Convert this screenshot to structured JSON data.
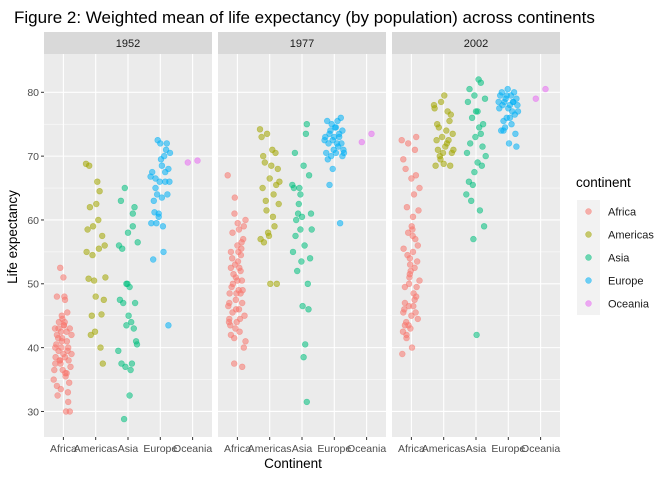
{
  "chart_data": {
    "type": "scatter",
    "title": "Figure 2: Weighted mean of life expectancy (by population) across continents",
    "xlabel": "Continent",
    "ylabel": "Life expectancy",
    "ylim": [
      26,
      86
    ],
    "y_ticks": [
      30,
      40,
      50,
      60,
      70,
      80
    ],
    "categories": [
      "Africa",
      "Americas",
      "Asia",
      "Europe",
      "Oceania"
    ],
    "facet_variable": "year",
    "legend": {
      "title": "continent",
      "position": "right"
    },
    "grid": true,
    "point_alpha": 0.55,
    "colors": {
      "Africa": "#F8766D",
      "Americas": "#A3A500",
      "Asia": "#00BF7D",
      "Europe": "#00B0F6",
      "Oceania": "#E76BF3"
    },
    "panel_background": "#EBEBEB",
    "strip_background": "#D9D9D9",
    "facets": [
      {
        "label": "1952",
        "series": [
          {
            "name": "Africa",
            "x": [
              0.7,
              0.75,
              0.75,
              0.8,
              0.8,
              0.8,
              0.85,
              0.85,
              0.9,
              0.9,
              0.92,
              0.95,
              0.95,
              0.98,
              1.0,
              1.0,
              1.02,
              1.05,
              1.05,
              1.08,
              1.1,
              1.1,
              1.12,
              1.15,
              1.15,
              1.18,
              1.2,
              1.2,
              1.22,
              1.25,
              1.25,
              0.72,
              0.78,
              0.82,
              0.88,
              0.93,
              0.97,
              1.03,
              1.07,
              1.13,
              0.76,
              0.86,
              0.96,
              1.06,
              1.16,
              0.74,
              0.84,
              0.94,
              1.04,
              1.14,
              0.91,
              1.01,
              1.11
            ],
            "y": [
              35.0,
              37.5,
              40.0,
              34.0,
              42.0,
              48.0,
              43.0,
              39.5,
              52.5,
              38.0,
              33.5,
              45.0,
              41.0,
              36.5,
              39.0,
              51.0,
              43.5,
              38.5,
              47.5,
              30.0,
              42.5,
              36.0,
              45.5,
              31.5,
              40.0,
              34.5,
              30.0,
              43.0,
              37.0,
              42.0,
              39.0,
              36.5,
              40.5,
              32.5,
              38.0,
              42.5,
              44.5,
              48.0,
              35.5,
              39.5,
              38.5,
              44.0,
              41.5,
              36.0,
              38.0,
              43.0,
              41.5,
              40.0,
              44.0,
              33.0,
              37.5,
              43.5,
              41.0
            ]
          },
          {
            "name": "Americas",
            "x": [
              1.7,
              1.72,
              1.75,
              1.78,
              1.8,
              1.82,
              1.85,
              1.88,
              1.9,
              1.92,
              1.95,
              1.98,
              2.0,
              2.02,
              2.05,
              2.08,
              2.1,
              2.12,
              2.15,
              2.18,
              2.2,
              2.22,
              2.25,
              2.28,
              2.3
            ],
            "y": [
              68.8,
              55.0,
              58.5,
              50.8,
              68.5,
              62.0,
              42.0,
              45.0,
              54.5,
              59.0,
              50.5,
              42.5,
              48.0,
              62.5,
              66.0,
              60.0,
              55.5,
              64.5,
              40.0,
              45.2,
              57.5,
              37.5,
              47.5,
              56.0,
              51.0
            ]
          },
          {
            "name": "Asia",
            "x": [
              2.7,
              2.72,
              2.75,
              2.78,
              2.8,
              2.82,
              2.85,
              2.88,
              2.9,
              2.92,
              2.95,
              2.98,
              3.0,
              3.02,
              3.05,
              3.08,
              3.1,
              3.12,
              3.15,
              3.18,
              3.2,
              3.22,
              3.25,
              3.28,
              3.3,
              3.15,
              2.95,
              3.05
            ],
            "y": [
              39.5,
              56.0,
              47.5,
              63.0,
              37.5,
              55.5,
              47.0,
              28.8,
              65.0,
              37.0,
              43.5,
              50.0,
              58.0,
              45.0,
              49.5,
              36.5,
              44.0,
              37.5,
              59.0,
              43.0,
              62.0,
              47.0,
              41.0,
              40.5,
              56.5,
              61.0,
              50.0,
              32.5
            ]
          },
          {
            "name": "Europe",
            "x": [
              3.7,
              3.72,
              3.75,
              3.78,
              3.8,
              3.82,
              3.85,
              3.88,
              3.9,
              3.92,
              3.95,
              3.98,
              4.0,
              4.02,
              4.05,
              4.08,
              4.1,
              4.12,
              4.15,
              4.18,
              4.2,
              4.22,
              4.25,
              4.28,
              4.3,
              3.85,
              3.95,
              4.05,
              4.15,
              4.25
            ],
            "y": [
              66.8,
              59.5,
              67.5,
              53.8,
              63.0,
              61.2,
              66.5,
              59.5,
              64.0,
              72.5,
              61.0,
              66.0,
              72.0,
              69.5,
              68.5,
              59.0,
              55.0,
              70.0,
              67.5,
              71.0,
              72.0,
              64.0,
              43.5,
              66.0,
              70.5,
              65.0,
              60.5,
              63.5,
              66.0,
              68.0
            ]
          },
          {
            "name": "Oceania",
            "x": [
              4.85,
              5.15
            ],
            "y": [
              69.0,
              69.3
            ]
          }
        ]
      },
      {
        "label": "1977",
        "series": [
          {
            "name": "Africa",
            "x": [
              0.7,
              0.75,
              0.75,
              0.8,
              0.8,
              0.8,
              0.85,
              0.85,
              0.9,
              0.9,
              0.92,
              0.95,
              0.95,
              0.98,
              1.0,
              1.0,
              1.02,
              1.05,
              1.05,
              1.08,
              1.1,
              1.1,
              1.12,
              1.15,
              1.15,
              1.18,
              1.2,
              1.2,
              1.22,
              1.25,
              1.25,
              0.72,
              0.78,
              0.82,
              0.88,
              0.93,
              0.97,
              1.03,
              1.07,
              1.13,
              0.76,
              0.86,
              0.96,
              1.06,
              1.16,
              0.74,
              0.84,
              0.94,
              1.04,
              1.14,
              0.91,
              1.01,
              1.11
            ],
            "y": [
              67.0,
              44.5,
              47.0,
              52.5,
              55.0,
              42.0,
              58.0,
              45.5,
              41.5,
              37.5,
              63.5,
              51.0,
              47.5,
              44.0,
              50.5,
              56.0,
              53.5,
              58.5,
              46.0,
              44.5,
              52.0,
              48.5,
              55.5,
              37.0,
              47.0,
              57.0,
              40.0,
              59.0,
              45.0,
              60.0,
              41.0,
              46.5,
              43.5,
              49.5,
              51.5,
              53.0,
              48.5,
              55.0,
              42.5,
              56.5,
              48.5,
              50.0,
              46.0,
              52.5,
              49.0,
              44.0,
              54.0,
              43.0,
              49.0,
              50.5,
              61.0,
              59.5,
              54.5
            ]
          },
          {
            "name": "Americas",
            "x": [
              1.7,
              1.72,
              1.75,
              1.78,
              1.8,
              1.82,
              1.85,
              1.88,
              1.9,
              1.92,
              1.95,
              1.98,
              2.0,
              2.02,
              2.05,
              2.08,
              2.1,
              2.12,
              2.15,
              2.18,
              2.2,
              2.22,
              2.25,
              2.28,
              2.3
            ],
            "y": [
              74.2,
              57.0,
              73.0,
              65.0,
              70.0,
              56.5,
              69.0,
              63.0,
              61.5,
              73.5,
              58.0,
              57.5,
              66.5,
              50.0,
              68.5,
              71.0,
              60.5,
              64.0,
              59.0,
              70.5,
              65.5,
              50.0,
              68.0,
              62.5,
              66.0
            ]
          },
          {
            "name": "Asia",
            "x": [
              2.7,
              2.72,
              2.75,
              2.78,
              2.8,
              2.82,
              2.85,
              2.88,
              2.9,
              2.92,
              2.95,
              2.98,
              3.0,
              3.02,
              3.05,
              3.08,
              3.1,
              3.12,
              3.15,
              3.18,
              3.2,
              3.22,
              3.25,
              3.28,
              3.3,
              3.15,
              2.95,
              3.05
            ],
            "y": [
              65.5,
              55.0,
              65.0,
              70.5,
              57.5,
              60.0,
              52.0,
              61.0,
              62.5,
              65.0,
              58.5,
              53.5,
              60.5,
              46.5,
              68.5,
              56.0,
              40.5,
              73.5,
              31.5,
              50.0,
              46.0,
              67.0,
              54.0,
              61.0,
              58.5,
              75.0,
              64.0,
              38.5
            ]
          },
          {
            "name": "Europe",
            "x": [
              3.7,
              3.72,
              3.75,
              3.78,
              3.8,
              3.82,
              3.85,
              3.88,
              3.9,
              3.92,
              3.95,
              3.98,
              4.0,
              4.02,
              4.05,
              4.08,
              4.1,
              4.12,
              4.15,
              4.18,
              4.2,
              4.22,
              4.25,
              4.28,
              4.3,
              3.85,
              3.95,
              4.05,
              4.15,
              4.25
            ],
            "y": [
              72.5,
              73.0,
              70.5,
              75.5,
              69.5,
              72.0,
              73.5,
              74.0,
              70.0,
              75.0,
              72.5,
              71.0,
              73.0,
              74.5,
              70.5,
              72.0,
              75.5,
              71.5,
              73.0,
              59.5,
              76.0,
              72.0,
              74.0,
              71.0,
              70.5,
              65.5,
              68.0,
              74.5,
              73.5,
              70.0
            ]
          },
          {
            "name": "Oceania",
            "x": [
              4.85,
              5.15
            ],
            "y": [
              72.2,
              73.5
            ]
          }
        ]
      },
      {
        "label": "2002",
        "series": [
          {
            "name": "Africa",
            "x": [
              0.7,
              0.75,
              0.75,
              0.8,
              0.8,
              0.8,
              0.85,
              0.85,
              0.9,
              0.9,
              0.92,
              0.95,
              0.95,
              0.98,
              1.0,
              1.0,
              1.02,
              1.05,
              1.05,
              1.08,
              1.1,
              1.1,
              1.12,
              1.15,
              1.15,
              1.18,
              1.2,
              1.2,
              1.22,
              1.25,
              1.25,
              0.72,
              0.78,
              0.82,
              0.88,
              0.93,
              0.97,
              1.03,
              1.07,
              1.13,
              0.76,
              0.86,
              0.96,
              1.06,
              1.16,
              0.74,
              0.84,
              0.94,
              1.04,
              1.14,
              0.91,
              1.01,
              1.11
            ],
            "y": [
              72.5,
              69.5,
              45.5,
              47.0,
              49.5,
              43.5,
              42.0,
              41.5,
              58.0,
              72.0,
              46.5,
              51.5,
              54.0,
              52.0,
              66.5,
              45.0,
              40.0,
              60.5,
              55.0,
              64.0,
              47.5,
              52.5,
              57.0,
              73.0,
              48.0,
              53.5,
              44.5,
              56.0,
              61.5,
              65.0,
              50.5,
              39.0,
              46.0,
              68.0,
              54.5,
              50.0,
              43.0,
              58.5,
              48.5,
              45.5,
              55.5,
              62.0,
              53.0,
              46.5,
              49.5,
              42.5,
              44.0,
              51.0,
              57.5,
              67.0,
              43.5,
              59.0,
              71.0
            ]
          },
          {
            "name": "Americas",
            "x": [
              1.7,
              1.72,
              1.75,
              1.78,
              1.8,
              1.82,
              1.85,
              1.88,
              1.9,
              1.92,
              1.95,
              1.98,
              2.0,
              2.02,
              2.05,
              2.08,
              2.1,
              2.12,
              2.15,
              2.18,
              2.2,
              2.22,
              2.25,
              2.28,
              2.3
            ],
            "y": [
              78.0,
              77.5,
              68.5,
              72.5,
              75.0,
              71.0,
              74.5,
              70.0,
              69.5,
              78.5,
              73.0,
              70.5,
              68.8,
              79.5,
              71.5,
              74.0,
              72.0,
              77.0,
              72.5,
              75.5,
              68.5,
              76.5,
              70.5,
              73.5,
              71.0
            ]
          },
          {
            "name": "Asia",
            "x": [
              2.7,
              2.72,
              2.75,
              2.78,
              2.8,
              2.82,
              2.85,
              2.88,
              2.9,
              2.92,
              2.95,
              2.98,
              3.0,
              3.02,
              3.05,
              3.08,
              3.1,
              3.12,
              3.15,
              3.18,
              3.2,
              3.22,
              3.25,
              3.28,
              3.3,
              3.15,
              2.95,
              3.05
            ],
            "y": [
              64.0,
              70.5,
              78.5,
              66.0,
              80.5,
              72.0,
              63.0,
              76.0,
              65.5,
              57.0,
              79.5,
              73.0,
              77.0,
              42.0,
              69.0,
              82.0,
              74.5,
              61.5,
              81.5,
              68.5,
              71.5,
              75.0,
              59.0,
              79.0,
              70.0,
              73.5,
              67.5,
              77.0
            ]
          },
          {
            "name": "Europe",
            "x": [
              3.7,
              3.72,
              3.75,
              3.78,
              3.8,
              3.82,
              3.85,
              3.88,
              3.9,
              3.92,
              3.95,
              3.98,
              4.0,
              4.02,
              4.05,
              4.08,
              4.1,
              4.12,
              4.15,
              4.18,
              4.2,
              4.22,
              4.25,
              4.28,
              4.3,
              3.85,
              3.95,
              4.05,
              4.15,
              4.25
            ],
            "y": [
              78.5,
              77.5,
              79.5,
              74.0,
              80.0,
              78.0,
              75.5,
              78.5,
              74.5,
              79.0,
              76.0,
              80.5,
              77.5,
              72.0,
              78.0,
              79.5,
              75.0,
              77.0,
              78.5,
              80.0,
              76.5,
              73.5,
              79.0,
              78.0,
              77.0,
              74.0,
              79.5,
              76.0,
              78.5,
              71.5
            ]
          },
          {
            "name": "Oceania",
            "x": [
              4.85,
              5.15
            ],
            "y": [
              79.0,
              80.5
            ]
          }
        ]
      }
    ]
  }
}
